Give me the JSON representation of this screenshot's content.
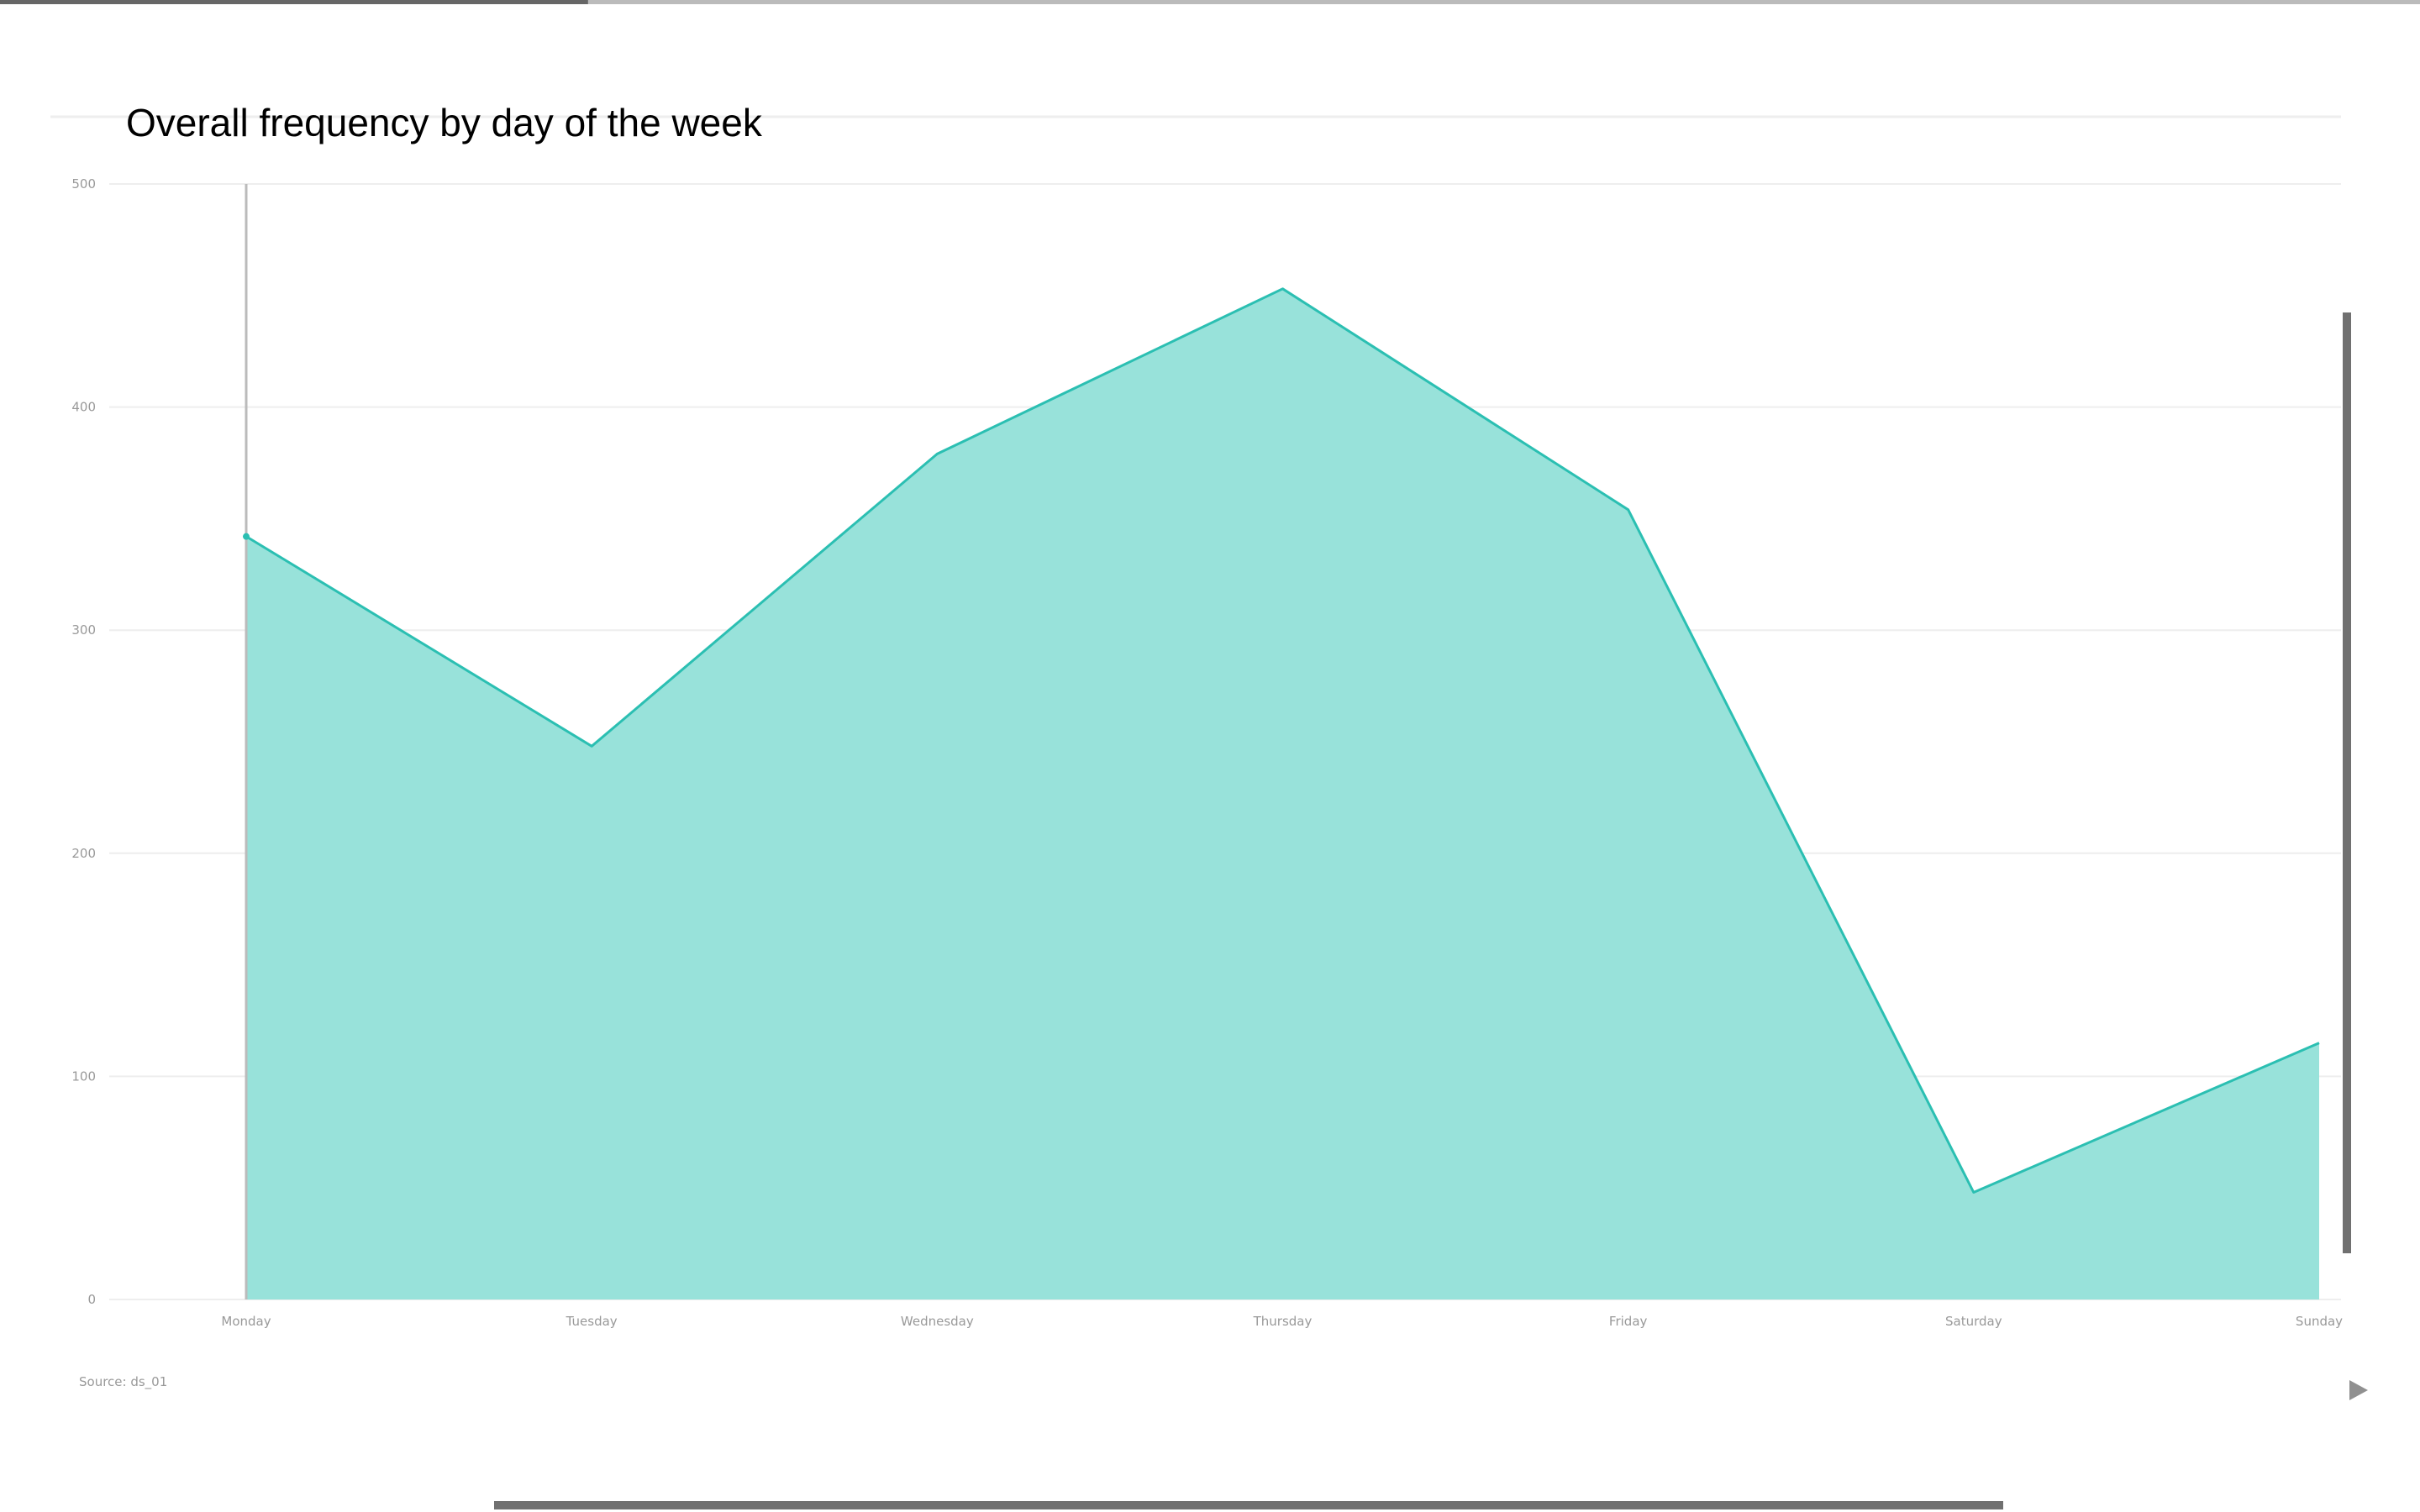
{
  "chart_data": {
    "type": "area",
    "title": "Overall frequency by day of the week",
    "categories": [
      "Monday",
      "Tuesday",
      "Wednesday",
      "Thursday",
      "Friday",
      "Saturday",
      "Sunday"
    ],
    "series": [
      {
        "values": [
          342,
          248,
          379,
          453,
          354,
          48,
          115
        ]
      }
    ],
    "yticks": [
      "0",
      "100",
      "200",
      "300",
      "400",
      "500"
    ],
    "ylim": [
      0,
      500
    ],
    "xlabel": "",
    "ylabel": "",
    "grid": true,
    "legend": "none",
    "highlighted_category": "Monday",
    "source": "Source: ds_01",
    "colors": {
      "line": "#2bbfb2",
      "fill": "#98e2da",
      "grid": "#eeeeee",
      "crosshair": "#bbbbbb",
      "tick": "#999999",
      "loading_bar": "#666666",
      "loading_track": "#bbbbbb",
      "scrollbar": "#707070",
      "play": "#909090"
    }
  },
  "controls": {
    "play_icon": "play-icon",
    "loading_progress": 0.243
  }
}
